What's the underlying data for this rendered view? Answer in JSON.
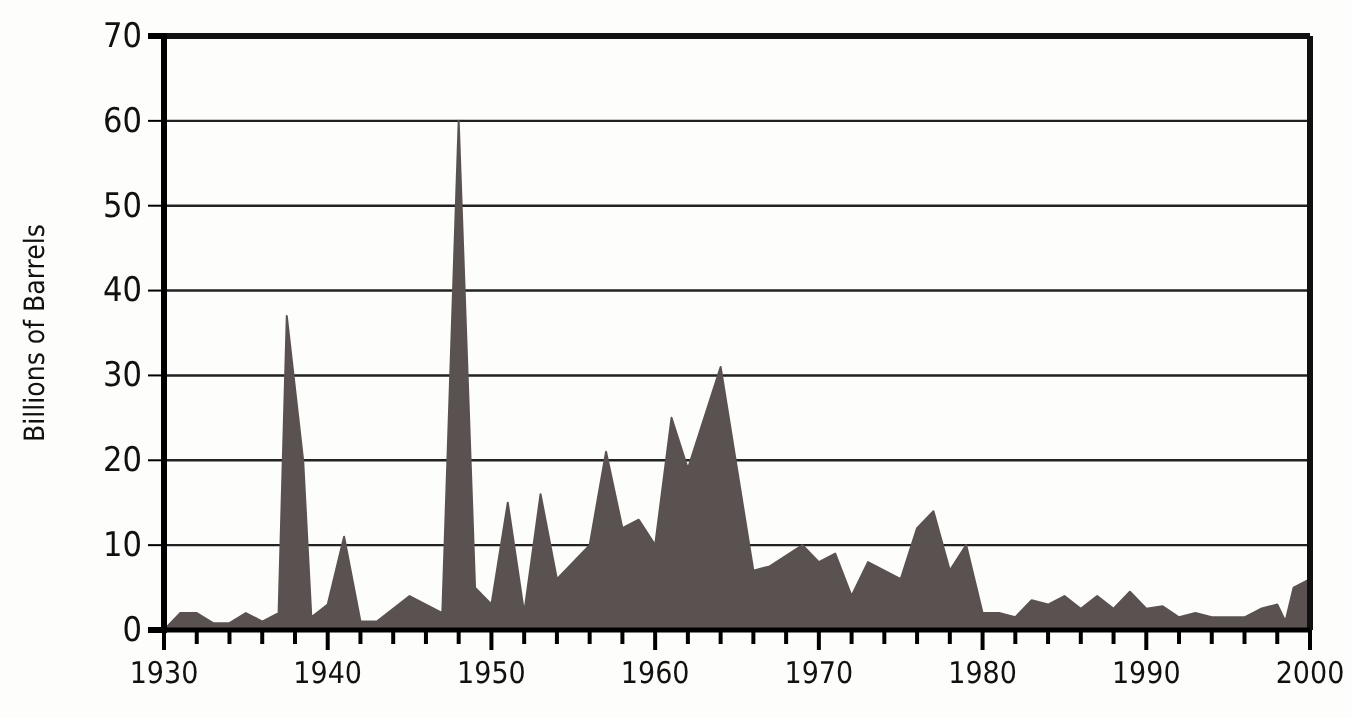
{
  "chart_data": {
    "type": "area",
    "ylabel": "Billions of Barrels",
    "x": [
      1930,
      1931,
      1932,
      1933,
      1934,
      1935,
      1936,
      1937,
      1937.5,
      1938.5,
      1939,
      1940,
      1941,
      1942,
      1943,
      1944,
      1945,
      1946,
      1947,
      1948,
      1949,
      1950,
      1951,
      1952,
      1953,
      1954,
      1955,
      1956,
      1957,
      1958,
      1959,
      1960,
      1961,
      1962,
      1964,
      1966,
      1967,
      1969,
      1970,
      1971,
      1972,
      1973,
      1974,
      1975,
      1976,
      1977,
      1978,
      1979,
      1980,
      1981,
      1982,
      1983,
      1984,
      1985,
      1986,
      1987,
      1988,
      1989,
      1990,
      1991,
      1992,
      1993,
      1994,
      1995,
      1996,
      1997,
      1998,
      1998.5,
      1999,
      2000
    ],
    "series": [
      {
        "color": "#5a5250",
        "values": [
          0,
          2,
          2,
          0.8,
          0.8,
          2,
          1,
          2,
          37,
          20,
          1.5,
          3,
          11,
          1,
          1,
          2.5,
          4,
          3,
          2,
          60,
          5,
          3,
          15,
          2,
          16,
          6,
          8,
          10,
          21,
          12,
          13,
          10,
          25,
          19,
          31,
          7,
          7.5,
          10,
          8,
          9,
          4,
          8,
          7,
          6,
          12,
          14,
          7,
          10,
          2,
          2,
          1.5,
          3.5,
          3,
          4,
          2.5,
          4,
          2.5,
          4.5,
          2.5,
          2.8,
          1.5,
          2,
          1.5,
          1.5,
          1.5,
          2.5,
          3,
          1,
          5,
          6
        ]
      }
    ],
    "xlim": [
      1930,
      2000
    ],
    "ylim": [
      0,
      70
    ],
    "xticks": [
      1930,
      {
        "value": 1932,
        "label": null
      },
      {
        "value": 1934,
        "label": null
      },
      {
        "value": 1936,
        "label": null
      },
      {
        "value": 1938,
        "label": null
      },
      1940,
      {
        "value": 1942,
        "label": null
      },
      {
        "value": 1944,
        "label": null
      },
      {
        "value": 1946,
        "label": null
      },
      {
        "value": 1948,
        "label": null
      },
      1950,
      {
        "value": 1952,
        "label": null
      },
      {
        "value": 1954,
        "label": null
      },
      {
        "value": 1956,
        "label": null
      },
      {
        "value": 1958,
        "label": null
      },
      1960,
      {
        "value": 1962,
        "label": null
      },
      {
        "value": 1964,
        "label": null
      },
      {
        "value": 1966,
        "label": null
      },
      {
        "value": 1968,
        "label": null
      },
      1970,
      {
        "value": 1972,
        "label": null
      },
      {
        "value": 1974,
        "label": null
      },
      {
        "value": 1976,
        "label": null
      },
      {
        "value": 1978,
        "label": null
      },
      1980,
      {
        "value": 1982,
        "label": null
      },
      {
        "value": 1984,
        "label": null
      },
      {
        "value": 1986,
        "label": null
      },
      {
        "value": 1988,
        "label": null
      },
      1990,
      {
        "value": 1992,
        "label": null
      },
      {
        "value": 1994,
        "label": null
      },
      {
        "value": 1996,
        "label": null
      },
      {
        "value": 1998,
        "label": null
      },
      2000
    ],
    "yticks": [
      0,
      10,
      20,
      30,
      40,
      50,
      60,
      70
    ],
    "grid": "y"
  }
}
